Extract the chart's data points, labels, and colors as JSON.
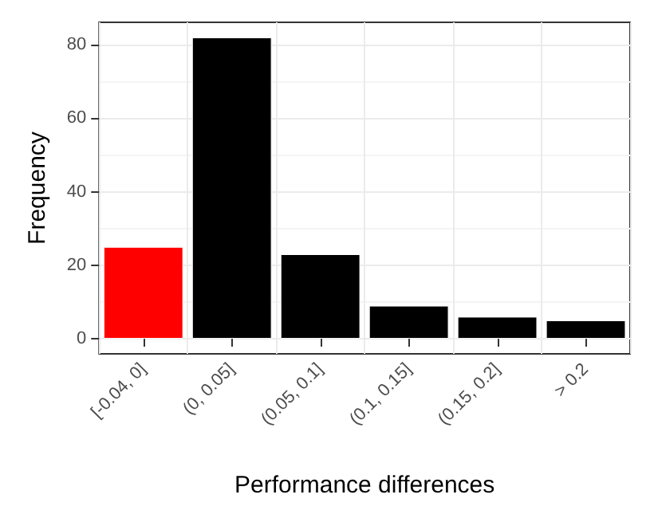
{
  "chart_data": {
    "type": "bar",
    "xlabel": "Performance differences",
    "ylabel": "Frequency",
    "categories": [
      "[-0.04, 0]",
      "(0, 0.05]",
      "(0.05, 0.1]",
      "(0.1, 0.15]",
      "(0.15, 0.2]",
      "> 0.2"
    ],
    "values": [
      25,
      82,
      23,
      9,
      6,
      5
    ],
    "colors": [
      "#ff0000",
      "#000000",
      "#000000",
      "#000000",
      "#000000",
      "#000000"
    ],
    "ylim": [
      -4.1,
      86.1
    ],
    "yticks": [
      0,
      20,
      40,
      60,
      80
    ],
    "grid": true
  }
}
